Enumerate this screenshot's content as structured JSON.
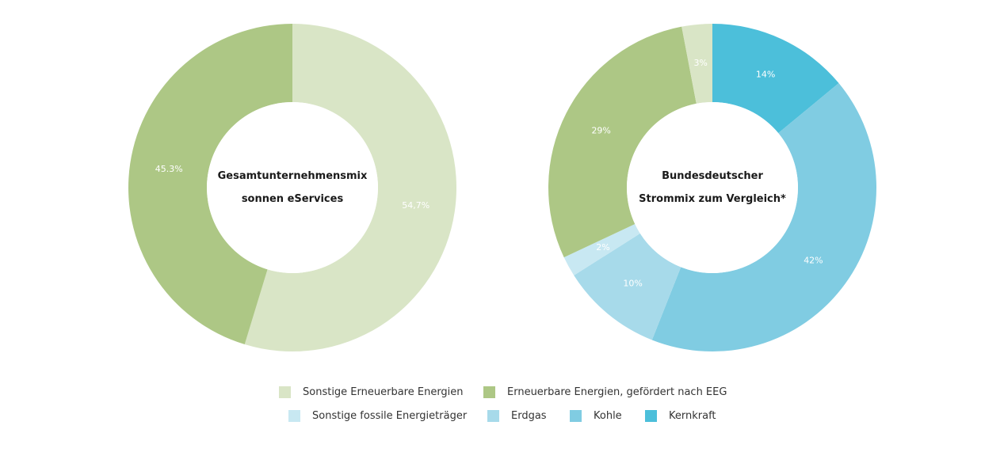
{
  "chart_data": [
    {
      "type": "pie",
      "title": "Gesamtunternehmensmix sonnen eServices",
      "center_lines": [
        "Gesamtunternehmensmix",
        "sonnen eServices"
      ],
      "slices": [
        {
          "name": "Sonstige Erneuerbare Energien",
          "value": 54.7,
          "label": "54,7%",
          "color": "#d9e5c6"
        },
        {
          "name": "Erneuerbare Energien, gefördert nach EEG",
          "value": 45.3,
          "label": "45.3%",
          "color": "#adc785"
        }
      ]
    },
    {
      "type": "pie",
      "title": "Bundesdeutscher Strommix zum Vergleich*",
      "center_lines": [
        "Bundesdeutscher",
        "Strommix zum Vergleich*"
      ],
      "slices": [
        {
          "name": "Kernkraft",
          "value": 14,
          "label": "14%",
          "color": "#4cbfda"
        },
        {
          "name": "Kohle",
          "value": 42,
          "label": "42%",
          "color": "#80cce2"
        },
        {
          "name": "Erdgas",
          "value": 10,
          "label": "10%",
          "color": "#a7daea"
        },
        {
          "name": "Sonstige fossile Energieträger",
          "value": 2,
          "label": "2%",
          "color": "#c8e8f2"
        },
        {
          "name": "Erneuerbare Energien, gefördert nach EEG",
          "value": 29,
          "label": "29%",
          "color": "#adc785"
        },
        {
          "name": "Sonstige Erneuerbare Energien",
          "value": 3,
          "label": "3%",
          "color": "#d9e5c6"
        }
      ]
    }
  ],
  "legend": {
    "row1": [
      {
        "label": "Sonstige Erneuerbare Energien",
        "color": "#d9e5c6"
      },
      {
        "label": "Erneuerbare Energien, gefördert nach EEG",
        "color": "#adc785"
      }
    ],
    "row2": [
      {
        "label": "Sonstige fossile Energieträger",
        "color": "#c8e8f2"
      },
      {
        "label": "Erdgas",
        "color": "#a7daea"
      },
      {
        "label": "Kohle",
        "color": "#80cce2"
      },
      {
        "label": "Kernkraft",
        "color": "#4cbfda"
      }
    ]
  }
}
